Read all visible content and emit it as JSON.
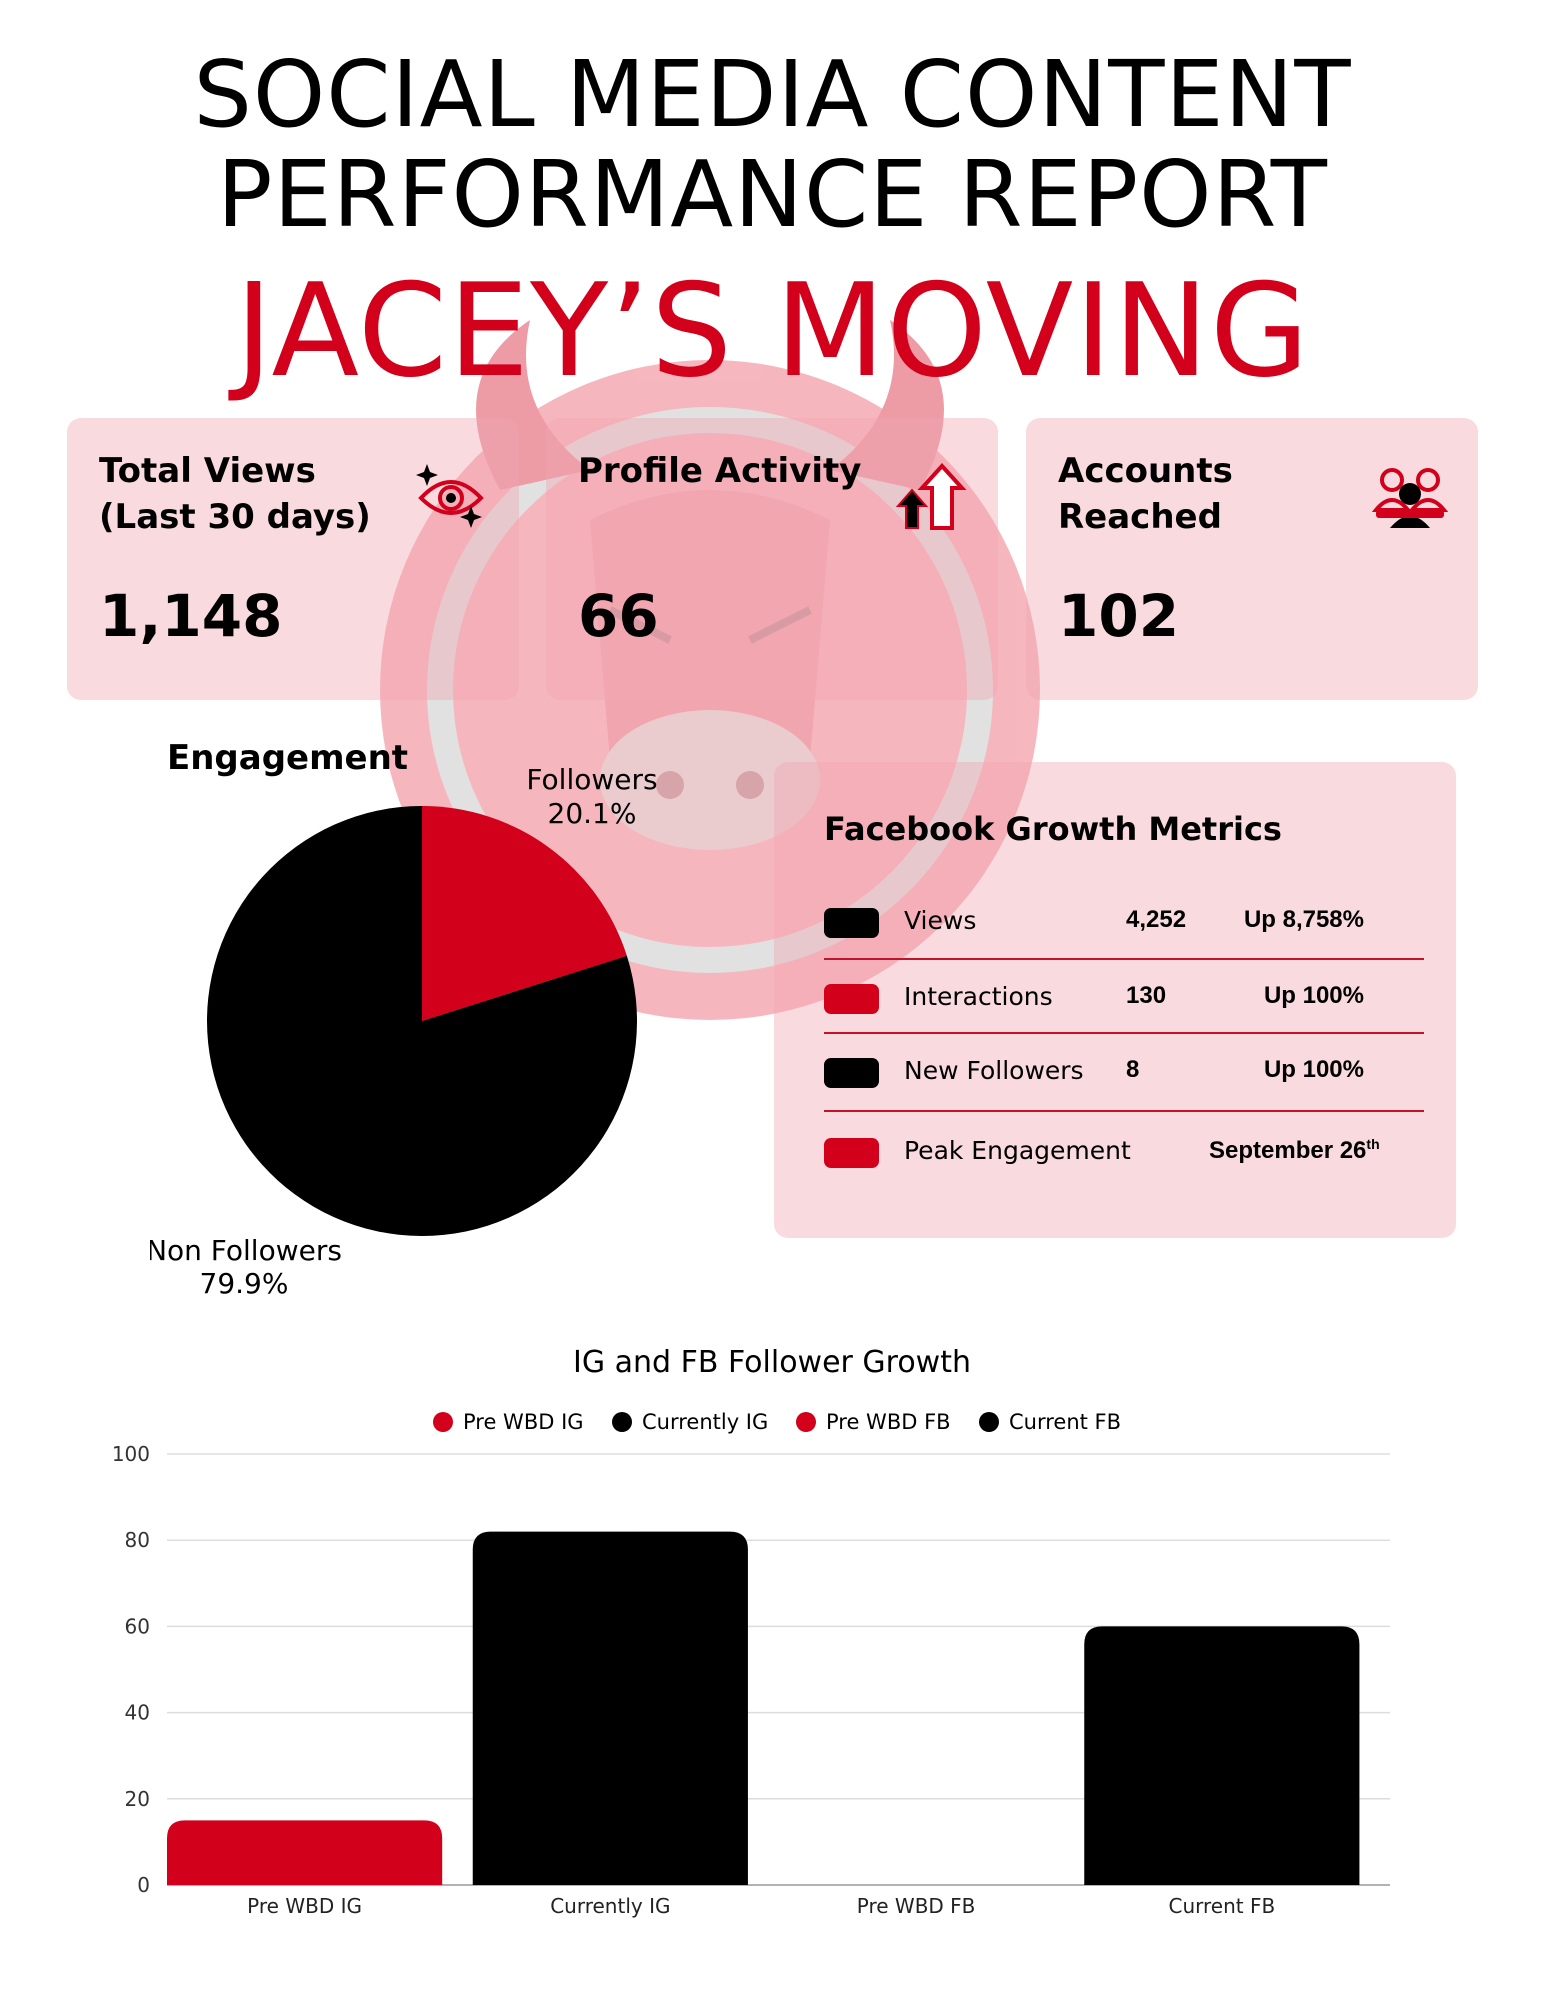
{
  "header": {
    "title_line1": "SOCIAL MEDIA CONTENT",
    "title_line2": "PERFORMANCE REPORT",
    "company": "JACEY’S MOVING"
  },
  "kpis": [
    {
      "label": "Total Views\n(Last 30 days)",
      "value": "1,148",
      "icon": "eye-sparkle-icon"
    },
    {
      "label": "Profile Activity",
      "value": "66",
      "icon": "up-arrows-icon"
    },
    {
      "label": "Accounts\nReached",
      "value": "102",
      "icon": "users-icon"
    }
  ],
  "engagement": {
    "title": "Engagement",
    "followers_label": "Followers",
    "followers_pct": "20.1%",
    "non_followers_label": "Non Followers",
    "non_followers_pct": "79.9%"
  },
  "facebook_growth": {
    "title": "Facebook Growth Metrics",
    "rows": [
      {
        "name": "Views",
        "value": "4,252",
        "change": "Up 8,758%",
        "swatch": "#000000"
      },
      {
        "name": "Interactions",
        "value": "130",
        "change": "Up 100%",
        "swatch": "#d2001b"
      },
      {
        "name": "New Followers",
        "value": "8",
        "change": "Up 100%",
        "swatch": "#000000"
      },
      {
        "name": "Peak Engagement",
        "value": "September 26",
        "suffix": "th",
        "swatch": "#d2001b"
      }
    ]
  },
  "colors": {
    "accent": "#d2001b",
    "dark": "#000000",
    "card": "#f7d5da"
  },
  "chart_data": [
    {
      "type": "pie",
      "title": "Engagement",
      "slices": [
        {
          "label": "Followers",
          "value": 20.1,
          "color": "#d2001b"
        },
        {
          "label": "Non Followers",
          "value": 79.9,
          "color": "#000000"
        }
      ]
    },
    {
      "type": "bar",
      "title": "IG and FB Follower Growth",
      "categories": [
        "Pre WBD IG",
        "Currently IG",
        "Pre WBD FB",
        "Current FB"
      ],
      "values": [
        15,
        82,
        0,
        60
      ],
      "colors": [
        "#d2001b",
        "#000000",
        "#d2001b",
        "#000000"
      ],
      "legend": [
        "Pre WBD IG",
        "Currently IG",
        "Pre WBD FB",
        "Current FB"
      ],
      "legend_position": "top",
      "ylim": [
        0,
        100
      ],
      "yticks": [
        0,
        20,
        40,
        60,
        80,
        100
      ],
      "grid": true
    }
  ]
}
